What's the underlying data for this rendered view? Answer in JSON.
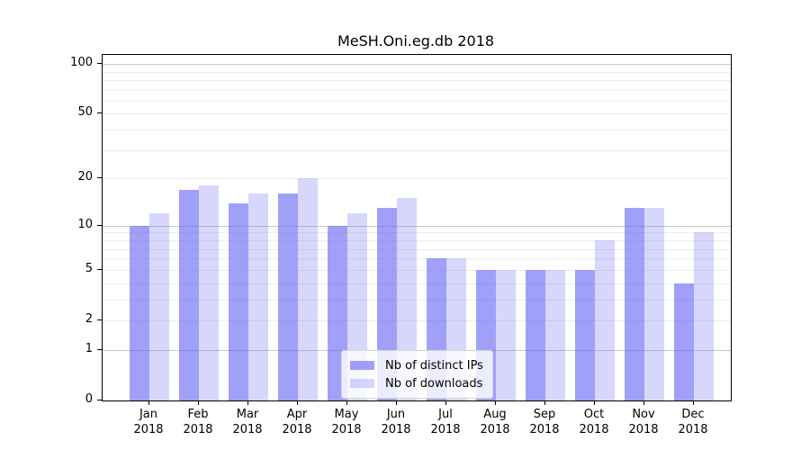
{
  "title": "MeSH.Oni.eg.db 2018",
  "chart_data": {
    "type": "bar",
    "title": "MeSH.Oni.eg.db 2018",
    "months": [
      "Jan",
      "Feb",
      "Mar",
      "Apr",
      "May",
      "Jun",
      "Jul",
      "Aug",
      "Sep",
      "Oct",
      "Nov",
      "Dec"
    ],
    "year": "2018",
    "categories": [
      "Jan 2018",
      "Feb 2018",
      "Mar 2018",
      "Apr 2018",
      "May 2018",
      "Jun 2018",
      "Jul 2018",
      "Aug 2018",
      "Sep 2018",
      "Oct 2018",
      "Nov 2018",
      "Dec 2018"
    ],
    "series": [
      {
        "name": "Nb of distinct IPs",
        "values": [
          10,
          17,
          14,
          16,
          10,
          13,
          6,
          5,
          5,
          5,
          13,
          4
        ],
        "color": "rgba(102,102,245,0.62)"
      },
      {
        "name": "Nb of downloads",
        "values": [
          12,
          18,
          16,
          20,
          12,
          15,
          6,
          5,
          5,
          8,
          13,
          9
        ],
        "color": "rgba(102,102,245,0.26)"
      }
    ],
    "xlabel": "",
    "ylabel": "",
    "yscale": "log1p",
    "ylim": [
      0,
      113.4
    ],
    "y_ticks": [
      0,
      1,
      2,
      5,
      10,
      20,
      50,
      100
    ],
    "y_major_gridlines": [
      1,
      10,
      100
    ],
    "y_minor_gridlines": [
      2,
      3,
      4,
      5,
      6,
      7,
      8,
      9,
      20,
      30,
      40,
      50,
      60,
      70,
      80,
      90
    ],
    "grid": true,
    "legend_position": "inside-bottom-center"
  },
  "colors": {
    "bar_base": "#6666f5",
    "axis": "#000000",
    "text": "#000000",
    "major_grid": "#c9c9c9",
    "minor_grid": "#ececec",
    "legend_bg": "rgba(255,255,255,0.8)",
    "legend_border": "#d5d5d5"
  }
}
